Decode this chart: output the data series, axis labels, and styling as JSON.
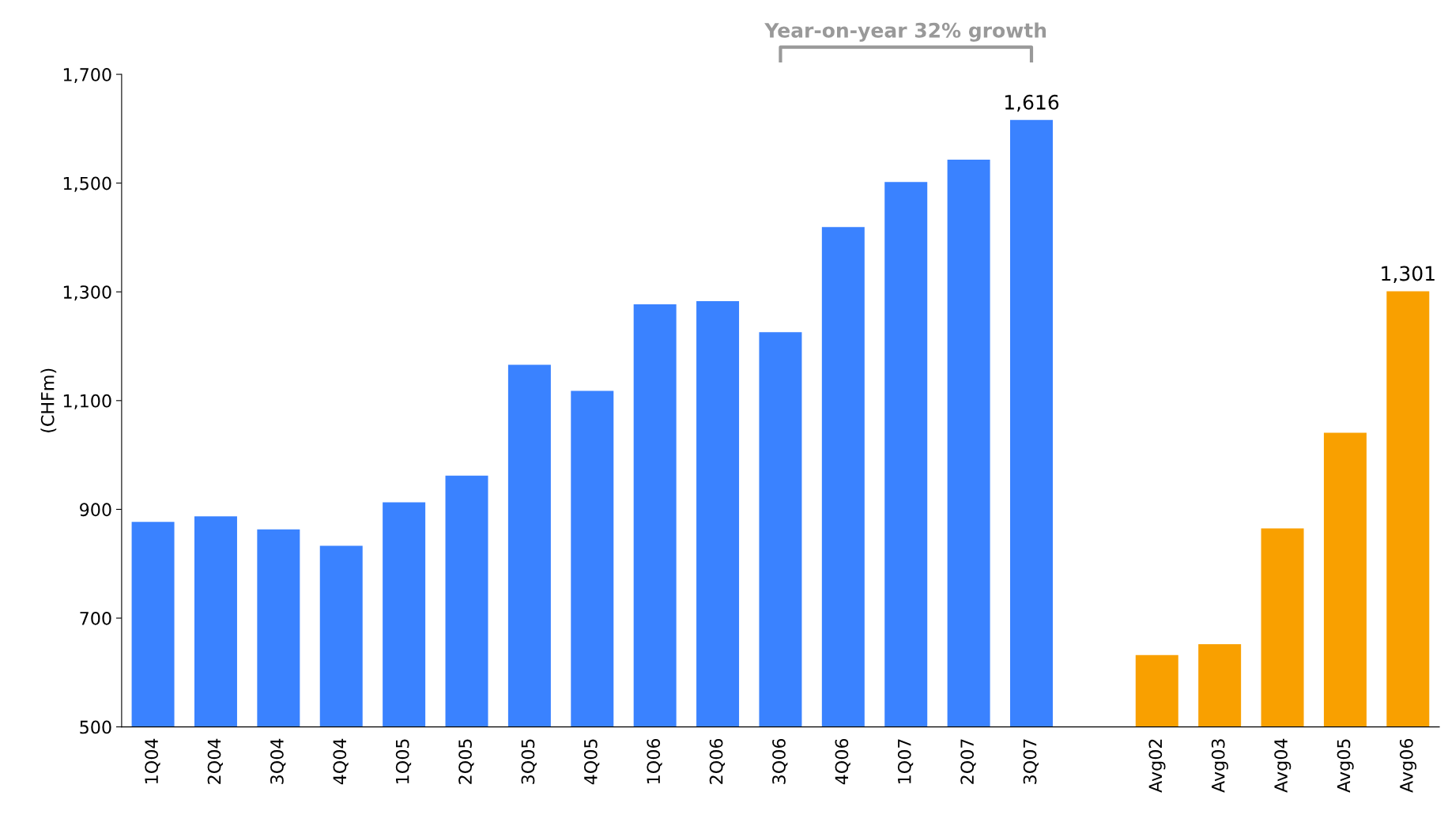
{
  "chart_data": {
    "type": "bar",
    "ylabel": "(CHFm)",
    "categories": [
      "1Q04",
      "2Q04",
      "3Q04",
      "4Q04",
      "1Q05",
      "2Q05",
      "3Q05",
      "4Q05",
      "1Q06",
      "2Q06",
      "3Q06",
      "4Q06",
      "1Q07",
      "2Q07",
      "3Q07",
      null,
      "Avg02",
      "Avg03",
      "Avg04",
      "Avg05",
      "Avg06"
    ],
    "values": [
      877,
      887,
      863,
      833,
      913,
      962,
      1166,
      1118,
      1277,
      1283,
      1226,
      1419,
      1502,
      1543,
      1616,
      null,
      632,
      652,
      865,
      1041,
      1301
    ],
    "value_labels": [
      null,
      null,
      null,
      null,
      null,
      null,
      null,
      null,
      null,
      null,
      null,
      null,
      null,
      null,
      "1,616",
      null,
      null,
      null,
      null,
      null,
      "1,301"
    ],
    "colors": [
      "#3a82ff",
      "#3a82ff",
      "#3a82ff",
      "#3a82ff",
      "#3a82ff",
      "#3a82ff",
      "#3a82ff",
      "#3a82ff",
      "#3a82ff",
      "#3a82ff",
      "#3a82ff",
      "#3a82ff",
      "#3a82ff",
      "#3a82ff",
      "#3a82ff",
      null,
      "#f9a000",
      "#f9a000",
      "#f9a000",
      "#f9a000",
      "#f9a000"
    ],
    "ylim": [
      500,
      1700
    ],
    "yticks": [
      500,
      700,
      900,
      {
        "value": 1100,
        "label": "1,100"
      },
      {
        "value": 1300,
        "label": "1,300"
      },
      {
        "value": 1500,
        "label": "1,500"
      },
      {
        "value": 1700,
        "label": "1,700"
      }
    ],
    "annotations": [
      "Year-on-year 32% growth"
    ],
    "grid": false,
    "legend": false
  }
}
